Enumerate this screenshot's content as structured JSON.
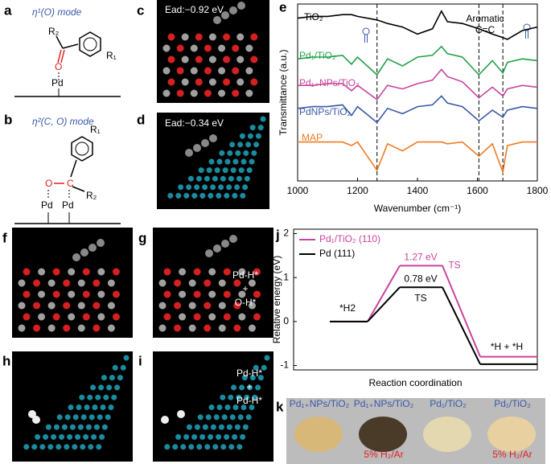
{
  "panel_labels": [
    "a",
    "b",
    "c",
    "d",
    "e",
    "f",
    "g",
    "h",
    "i",
    "j",
    "k"
  ],
  "a": {
    "title": "η¹(O) mode",
    "atoms": [
      "R₂",
      "R₁",
      "O",
      "Pd"
    ]
  },
  "b": {
    "title": "η²(C, O) mode",
    "atoms": [
      "R₁",
      "O",
      "C",
      "R₂",
      "Pd",
      "Pd"
    ]
  },
  "c": {
    "energy": "Ead:−0.92 eV"
  },
  "d": {
    "energy": "Ead:−0.34 eV"
  },
  "g": {
    "labels": [
      "Pd-H*",
      "+",
      "O-H*"
    ]
  },
  "i": {
    "labels": [
      "Pd-H*",
      "+",
      "Pd-H*"
    ]
  },
  "chart_data": [
    {
      "type": "line",
      "xlabel": "Wavenumber (cm⁻¹)",
      "ylabel": "Transmittance (a.u.)",
      "x": [
        1000,
        1050,
        1100,
        1150,
        1180,
        1200,
        1265,
        1300,
        1350,
        1400,
        1450,
        1480,
        1500,
        1550,
        1605,
        1650,
        1685,
        1700,
        1750,
        1800
      ],
      "xlim": [
        1000,
        1800
      ],
      "xticks": [
        1000,
        1200,
        1400,
        1600,
        1800
      ],
      "ylim": [
        0,
        10
      ],
      "reference_lines": [
        1265,
        1605,
        1685
      ],
      "annotations": [
        "Aromatic",
        "C=C"
      ],
      "series": [
        {
          "name": "TiO₂",
          "color": "#000000",
          "values": [
            9.2,
            9.3,
            9.3,
            9.4,
            9.4,
            9.3,
            9.1,
            8.9,
            8.7,
            8.3,
            8.6,
            9.6,
            9.0,
            8.9,
            8.6,
            8.3,
            8.1,
            8.0,
            8.5,
            8.7
          ]
        },
        {
          "name": "Pd₁/TiO₂",
          "color": "#23a04a",
          "values": [
            6.9,
            7.0,
            7.0,
            7.1,
            6.6,
            7.0,
            6.0,
            6.9,
            6.5,
            7.0,
            7.1,
            7.6,
            7.2,
            7.0,
            6.0,
            6.8,
            6.1,
            6.7,
            6.9,
            6.8
          ]
        },
        {
          "name": "Pd₁₊NPs/TiO₂",
          "color": "#c9449e",
          "values": [
            5.4,
            5.4,
            5.5,
            5.5,
            5.1,
            5.4,
            4.6,
            5.4,
            5.2,
            5.5,
            5.7,
            6.3,
            5.9,
            5.6,
            4.7,
            5.3,
            4.8,
            5.2,
            5.4,
            5.3
          ]
        },
        {
          "name": "PdNPs/TiO₂",
          "color": "#3a5aa8",
          "values": [
            4.1,
            4.2,
            4.2,
            4.3,
            3.7,
            4.2,
            3.3,
            4.1,
            3.8,
            4.2,
            4.3,
            4.8,
            4.4,
            4.2,
            3.4,
            4.0,
            3.6,
            4.0,
            4.2,
            4.1
          ]
        },
        {
          "name": "MAP",
          "color": "#f07a22",
          "values": [
            2.2,
            2.2,
            2.2,
            2.2,
            2.0,
            2.2,
            0.6,
            2.1,
            1.7,
            2.2,
            2.2,
            2.2,
            2.1,
            2.2,
            1.4,
            2.1,
            0.5,
            2.0,
            2.2,
            2.2
          ]
        }
      ]
    },
    {
      "type": "energy-diagram",
      "xlabel": "Reaction coordination",
      "ylabel": "Relative energy (eV)",
      "ylim": [
        -1.1,
        2.1
      ],
      "yticks": [
        -1,
        0,
        1,
        2
      ],
      "annotations": [
        "*H2",
        "TS",
        "TS",
        "*H + *H"
      ],
      "series": [
        {
          "name": "Pd₁/TiO₂ (110)",
          "color": "#c9449e",
          "values": [
            0,
            1.27,
            -0.8
          ],
          "value_labels": [
            null,
            "1.27 eV",
            null
          ]
        },
        {
          "name": "Pd (111)",
          "color": "#000000",
          "values": [
            0,
            0.78,
            -0.97
          ],
          "value_labels": [
            null,
            "0.78 eV",
            null
          ]
        }
      ]
    }
  ],
  "k": {
    "samples": [
      {
        "label": "Pd₁₊NPs/TiO₂"
      },
      {
        "label": "Pd₁₊NPs/TiO₂",
        "treatment": "5% H₂/Ar"
      },
      {
        "label": "Pd₁/TiO₂"
      },
      {
        "label": "Pd₁/TiO₂",
        "treatment": "5% H₂/Ar"
      }
    ]
  }
}
